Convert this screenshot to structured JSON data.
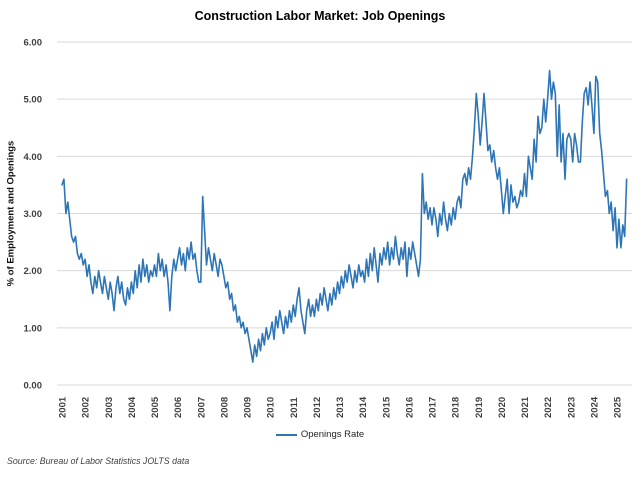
{
  "page": {
    "background": "#ffffff"
  },
  "chart_data": {
    "type": "line",
    "title": "Construction Labor Market: Job Openings",
    "ylabel": "% of Employment and Openings",
    "xlabel": "",
    "source_note": "Source: Bureau of Labor Statistics JOLTS data",
    "legend": [
      "Openings Rate"
    ],
    "legend_position": "bottom",
    "grid": true,
    "grid_color": "#D9D9D9",
    "ylim": [
      0,
      6
    ],
    "y_ticks": [
      0,
      1,
      2,
      3,
      4,
      5,
      6
    ],
    "y_tick_format": "0.00",
    "x_ticks": [
      2001,
      2002,
      2003,
      2004,
      2005,
      2006,
      2007,
      2008,
      2009,
      2010,
      2011,
      2012,
      2013,
      2014,
      2015,
      2016,
      2017,
      2018,
      2019,
      2020,
      2021,
      2022,
      2023,
      2024,
      2025
    ],
    "series": [
      {
        "name": "Openings Rate",
        "color": "#2E75B6",
        "start": "2001-01",
        "frequency": "monthly",
        "values": [
          3.5,
          3.6,
          3.0,
          3.2,
          2.9,
          2.6,
          2.5,
          2.6,
          2.3,
          2.2,
          2.3,
          2.1,
          2.2,
          1.9,
          2.1,
          1.8,
          1.6,
          1.9,
          1.7,
          2.0,
          1.8,
          1.6,
          1.9,
          1.7,
          1.5,
          1.8,
          1.6,
          1.3,
          1.7,
          1.9,
          1.6,
          1.8,
          1.5,
          1.4,
          1.7,
          1.5,
          1.8,
          1.6,
          2.0,
          1.7,
          2.1,
          1.8,
          2.2,
          1.9,
          2.1,
          1.8,
          2.0,
          1.9,
          2.1,
          1.9,
          2.3,
          2.0,
          2.2,
          1.9,
          2.1,
          1.8,
          1.3,
          1.9,
          2.2,
          2.0,
          2.2,
          2.4,
          2.1,
          2.3,
          2.0,
          2.4,
          2.2,
          2.5,
          2.2,
          2.3,
          2.0,
          1.8,
          1.8,
          3.3,
          2.7,
          2.1,
          2.4,
          2.2,
          2.0,
          2.3,
          2.1,
          1.9,
          2.2,
          2.1,
          1.9,
          1.7,
          1.8,
          1.5,
          1.6,
          1.3,
          1.4,
          1.1,
          1.2,
          1.0,
          1.1,
          0.9,
          1.0,
          0.8,
          0.6,
          0.4,
          0.7,
          0.5,
          0.8,
          0.6,
          0.9,
          0.7,
          1.0,
          0.8,
          0.9,
          1.1,
          0.8,
          1.2,
          1.0,
          1.3,
          1.1,
          0.9,
          1.2,
          1.0,
          1.3,
          1.1,
          1.4,
          1.2,
          1.5,
          1.7,
          1.3,
          1.1,
          0.9,
          1.3,
          1.5,
          1.2,
          1.4,
          1.2,
          1.5,
          1.3,
          1.6,
          1.4,
          1.7,
          1.5,
          1.3,
          1.6,
          1.4,
          1.7,
          1.5,
          1.8,
          1.6,
          1.9,
          1.7,
          2.0,
          1.8,
          2.1,
          1.9,
          1.7,
          2.0,
          1.8,
          2.1,
          1.9,
          2.0,
          1.8,
          2.2,
          1.9,
          2.3,
          2.0,
          2.4,
          2.1,
          1.8,
          2.3,
          2.1,
          2.4,
          2.2,
          2.5,
          2.1,
          2.4,
          2.2,
          2.6,
          2.3,
          2.1,
          2.4,
          2.2,
          2.5,
          1.9,
          2.4,
          2.2,
          2.5,
          2.3,
          2.1,
          1.9,
          2.2,
          3.7,
          3.0,
          3.2,
          2.9,
          3.1,
          2.8,
          3.1,
          2.9,
          2.6,
          3.0,
          2.8,
          3.2,
          2.9,
          2.7,
          3.0,
          2.8,
          3.1,
          2.9,
          3.2,
          3.3,
          3.1,
          3.6,
          3.7,
          3.5,
          3.8,
          3.6,
          4.0,
          4.5,
          5.1,
          4.7,
          4.2,
          4.6,
          5.1,
          4.6,
          4.1,
          4.2,
          3.9,
          4.1,
          3.8,
          3.6,
          3.8,
          3.4,
          3.0,
          3.3,
          3.6,
          3.0,
          3.5,
          3.2,
          3.3,
          3.1,
          3.2,
          3.4,
          3.3,
          3.7,
          3.3,
          4.0,
          3.8,
          3.6,
          4.3,
          3.9,
          4.7,
          4.4,
          4.5,
          5.0,
          4.6,
          5.0,
          5.5,
          5.0,
          5.3,
          5.1,
          4.0,
          4.9,
          3.9,
          4.4,
          3.6,
          4.3,
          4.4,
          4.3,
          3.9,
          4.4,
          4.2,
          3.9,
          3.9,
          4.6,
          5.1,
          5.2,
          4.9,
          5.3,
          4.9,
          4.4,
          5.4,
          5.3,
          4.4,
          4.1,
          3.7,
          3.3,
          3.4,
          3.0,
          3.2,
          2.7,
          3.1,
          2.4,
          2.9,
          2.4,
          2.8,
          2.6,
          3.6
        ]
      }
    ]
  }
}
